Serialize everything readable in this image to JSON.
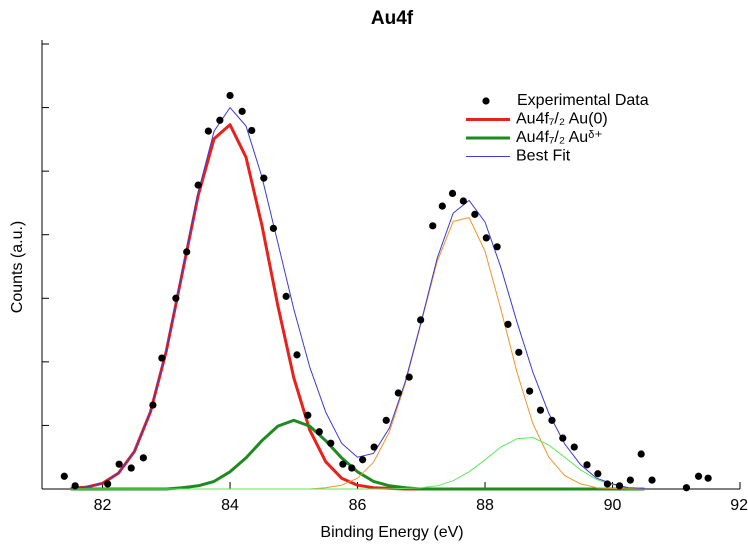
{
  "chart_data": {
    "type": "line",
    "title": "Au4f",
    "x_label": "Binding Energy (eV)",
    "y_label": "Counts (a.u.)",
    "xlim": [
      81.05,
      92
    ],
    "xticks": [
      82,
      84,
      86,
      88,
      90,
      92
    ],
    "ylim": [
      0,
      7
    ],
    "yticks": [
      0,
      1,
      2,
      3,
      4,
      5,
      6,
      7
    ],
    "legend": "upper right",
    "x": [
      81.5,
      81.75,
      82,
      82.25,
      82.5,
      82.75,
      83,
      83.25,
      83.5,
      83.75,
      84,
      84.25,
      84.5,
      84.75,
      85,
      85.25,
      85.5,
      85.75,
      86,
      86.25,
      86.5,
      86.75,
      87,
      87.25,
      87.5,
      87.75,
      88,
      88.25,
      88.5,
      88.75,
      89,
      89.25,
      89.5,
      89.75,
      90,
      90.25,
      90.5
    ],
    "scatter": {
      "name": "Experimental Data",
      "color": "#000000",
      "x": [
        81.4,
        81.57,
        82.08,
        82.26,
        82.45,
        82.64,
        82.79,
        82.93,
        83.15,
        83.32,
        83.5,
        83.66,
        83.84,
        84.0,
        84.19,
        84.34,
        84.53,
        84.68,
        84.88,
        85.05,
        85.22,
        85.4,
        85.58,
        85.77,
        85.91,
        86.08,
        86.26,
        86.45,
        86.64,
        86.81,
        86.99,
        87.18,
        87.33,
        87.49,
        87.66,
        87.84,
        88.02,
        88.19,
        88.36,
        88.53,
        88.7,
        88.87,
        89.05,
        89.22,
        89.4,
        89.6,
        89.77,
        89.92,
        90.11,
        90.28,
        90.45,
        90.62,
        91.16,
        91.35,
        91.5
      ],
      "values": [
        0.2,
        0.05,
        0.08,
        0.39,
        0.33,
        0.49,
        1.32,
        2.06,
        3.0,
        3.73,
        4.78,
        5.63,
        5.8,
        6.19,
        5.94,
        5.64,
        4.89,
        4.1,
        3.03,
        2.11,
        1.16,
        0.9,
        0.72,
        0.39,
        0.33,
        0.46,
        0.66,
        1.08,
        1.51,
        1.76,
        2.66,
        4.14,
        4.45,
        4.65,
        4.53,
        4.32,
        3.95,
        3.81,
        2.59,
        2.15,
        1.54,
        1.24,
        1.08,
        0.8,
        0.66,
        0.38,
        0.24,
        0.08,
        0.05,
        0.14,
        0.55,
        0.14,
        0.02,
        0.2,
        0.17
      ]
    },
    "series": [
      {
        "name": "Au4f₇/₂ Au(0)",
        "color": "#e8221b",
        "line_width": 3,
        "values": [
          0.01,
          0.03,
          0.09,
          0.25,
          0.59,
          1.21,
          2.17,
          3.39,
          4.62,
          5.51,
          5.73,
          5.22,
          4.15,
          2.88,
          1.75,
          0.93,
          0.43,
          0.17,
          0.06,
          0.02,
          0.01,
          0,
          0,
          0,
          0,
          0,
          0,
          0,
          0,
          0,
          0,
          0,
          0,
          0,
          0,
          0,
          0
        ]
      },
      {
        "name": "Au4f₇/₂ Auᵟ⁺",
        "color": "#1f8a1f",
        "line_width": 3,
        "values": [
          0,
          0,
          0,
          0,
          0,
          0,
          0,
          0.02,
          0.05,
          0.12,
          0.27,
          0.49,
          0.76,
          0.99,
          1.08,
          0.99,
          0.76,
          0.49,
          0.27,
          0.12,
          0.05,
          0.02,
          0,
          0,
          0,
          0,
          0,
          0,
          0,
          0,
          0,
          0,
          0,
          0,
          0,
          0,
          0
        ]
      },
      {
        "color": "#f0962a",
        "line_width": 1,
        "values": [
          0,
          0,
          0,
          0,
          0,
          0,
          0,
          0,
          0,
          0,
          0,
          0,
          0,
          0,
          0,
          0,
          0.02,
          0.06,
          0.17,
          0.42,
          0.9,
          1.66,
          2.62,
          3.58,
          4.21,
          4.27,
          3.74,
          2.82,
          1.84,
          1.03,
          0.5,
          0.21,
          0.08,
          0.02,
          0.01,
          0,
          0
        ]
      },
      {
        "color": "#5ee85e",
        "line_width": 1,
        "values": [
          0,
          0,
          0,
          0,
          0,
          0,
          0,
          0,
          0,
          0,
          0,
          0,
          0,
          0,
          0,
          0,
          0,
          0,
          0,
          0,
          0,
          0.01,
          0.02,
          0.05,
          0.13,
          0.27,
          0.46,
          0.66,
          0.79,
          0.81,
          0.69,
          0.5,
          0.3,
          0.15,
          0.07,
          0.02,
          0.01
        ]
      },
      {
        "name": "Best Fit",
        "color": "#3b3bd6",
        "line_width": 1,
        "values": [
          0.01,
          0.03,
          0.09,
          0.25,
          0.59,
          1.21,
          2.17,
          3.41,
          4.67,
          5.63,
          6.0,
          5.71,
          4.91,
          3.87,
          2.83,
          1.92,
          1.21,
          0.72,
          0.5,
          0.56,
          0.96,
          1.69,
          2.64,
          3.63,
          4.34,
          4.54,
          4.2,
          3.48,
          2.63,
          1.84,
          1.19,
          0.71,
          0.38,
          0.17,
          0.08,
          0.02,
          0.01
        ]
      }
    ]
  }
}
